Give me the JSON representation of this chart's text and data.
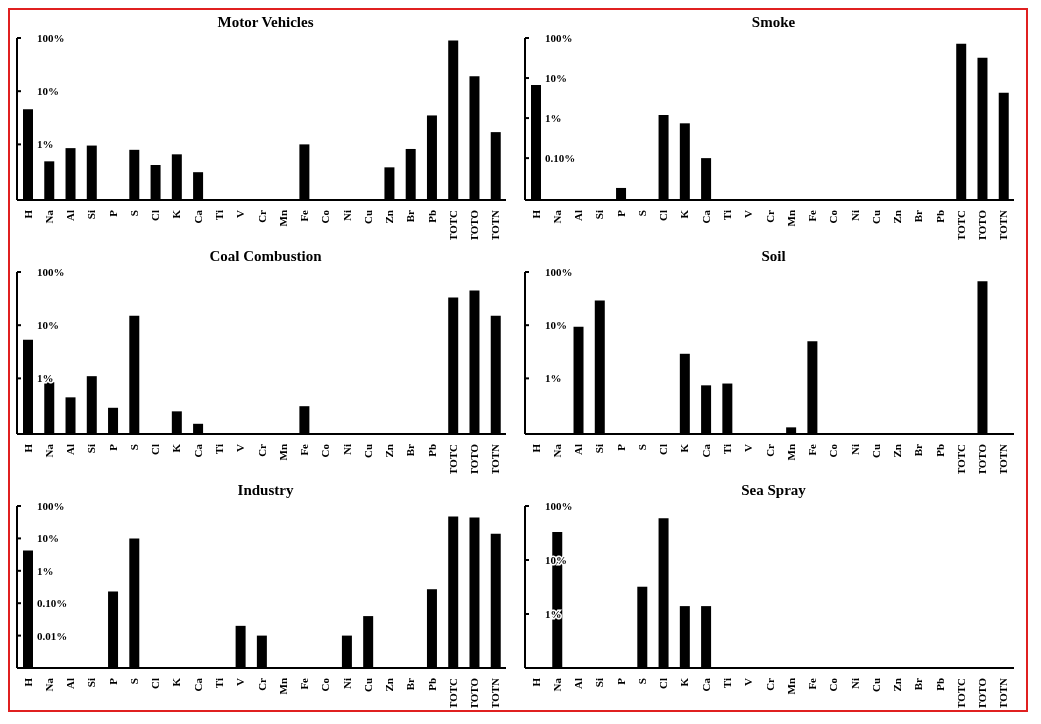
{
  "chart_data": [
    {
      "type": "bar",
      "title": "Motor Vehicles",
      "categories": [
        "H",
        "Na",
        "Al",
        "Si",
        "P",
        "S",
        "Cl",
        "K",
        "Ca",
        "Ti",
        "V",
        "Cr",
        "Mn",
        "Fe",
        "Co",
        "Ni",
        "Cu",
        "Zn",
        "Br",
        "Pb",
        "TOTC",
        "TOTO",
        "TOTN"
      ],
      "values": [
        4.6,
        0.48,
        0.85,
        0.95,
        null,
        0.79,
        0.41,
        0.65,
        0.3,
        null,
        null,
        null,
        null,
        1.0,
        null,
        null,
        null,
        0.37,
        0.82,
        3.5,
        90,
        19,
        1.7
      ],
      "color": "#000000",
      "log": true,
      "ylim": [
        0.09,
        100
      ],
      "yticks": [
        {
          "value": 1,
          "label": "1%"
        },
        {
          "value": 10,
          "label": "10%"
        },
        {
          "value": 100,
          "label": "100%"
        }
      ]
    },
    {
      "type": "bar",
      "title": "Smoke",
      "categories": [
        "H",
        "Na",
        "Al",
        "Si",
        "P",
        "S",
        "Cl",
        "K",
        "Ca",
        "Ti",
        "V",
        "Cr",
        "Mn",
        "Fe",
        "Co",
        "Ni",
        "Cu",
        "Zn",
        "Br",
        "Pb",
        "TOTC",
        "TOTO",
        "TOTN"
      ],
      "values": [
        6.7,
        null,
        null,
        null,
        0.018,
        null,
        1.2,
        0.74,
        0.1,
        null,
        null,
        null,
        null,
        null,
        null,
        null,
        null,
        null,
        null,
        null,
        72,
        32,
        4.3
      ],
      "color": "#000000",
      "log": true,
      "ylim": [
        0.009,
        100
      ],
      "yticks": [
        {
          "value": 0.1,
          "label": "0.10%"
        },
        {
          "value": 1,
          "label": "1%"
        },
        {
          "value": 10,
          "label": "10%"
        },
        {
          "value": 100,
          "label": "100%"
        }
      ]
    },
    {
      "type": "bar",
      "title": "Coal Combustion",
      "categories": [
        "H",
        "Na",
        "Al",
        "Si",
        "P",
        "S",
        "Cl",
        "K",
        "Ca",
        "Ti",
        "V",
        "Cr",
        "Mn",
        "Fe",
        "Co",
        "Ni",
        "Cu",
        "Zn",
        "Br",
        "Pb",
        "TOTC",
        "TOTO",
        "TOTN"
      ],
      "values": [
        5.3,
        0.85,
        0.44,
        1.1,
        0.28,
        15,
        null,
        0.24,
        0.14,
        null,
        null,
        null,
        null,
        0.3,
        null,
        null,
        null,
        null,
        null,
        null,
        33,
        45,
        15
      ],
      "color": "#000000",
      "log": true,
      "ylim": [
        0.09,
        100
      ],
      "yticks": [
        {
          "value": 1,
          "label": "1%"
        },
        {
          "value": 10,
          "label": "10%"
        },
        {
          "value": 100,
          "label": "100%"
        }
      ]
    },
    {
      "type": "bar",
      "title": "Soil",
      "categories": [
        "H",
        "Na",
        "Al",
        "Si",
        "P",
        "S",
        "Cl",
        "K",
        "Ca",
        "Ti",
        "V",
        "Cr",
        "Mn",
        "Fe",
        "Co",
        "Ni",
        "Cu",
        "Zn",
        "Br",
        "Pb",
        "TOTC",
        "TOTO",
        "TOTN"
      ],
      "values": [
        null,
        null,
        9.3,
        29,
        null,
        null,
        null,
        2.9,
        0.74,
        0.8,
        null,
        null,
        0.12,
        5,
        null,
        null,
        null,
        null,
        null,
        null,
        null,
        67,
        null
      ],
      "color": "#000000",
      "log": true,
      "ylim": [
        0.09,
        100
      ],
      "yticks": [
        {
          "value": 1,
          "label": "1%"
        },
        {
          "value": 10,
          "label": "10%"
        },
        {
          "value": 100,
          "label": "100%"
        }
      ]
    },
    {
      "type": "bar",
      "title": "Industry",
      "categories": [
        "H",
        "Na",
        "Al",
        "Si",
        "P",
        "S",
        "Cl",
        "K",
        "Ca",
        "Ti",
        "V",
        "Cr",
        "Mn",
        "Fe",
        "Co",
        "Ni",
        "Cu",
        "Zn",
        "Br",
        "Pb",
        "TOTC",
        "TOTO",
        "TOTN"
      ],
      "values": [
        4.2,
        null,
        null,
        null,
        0.23,
        10,
        null,
        null,
        null,
        null,
        0.02,
        0.01,
        null,
        null,
        null,
        0.01,
        0.04,
        null,
        null,
        0.27,
        47,
        44,
        14
      ],
      "color": "#000000",
      "log": true,
      "ylim": [
        0.001,
        100
      ],
      "yticks": [
        {
          "value": 0.01,
          "label": "0.01%"
        },
        {
          "value": 0.1,
          "label": "0.10%"
        },
        {
          "value": 1,
          "label": "1%"
        },
        {
          "value": 10,
          "label": "10%"
        },
        {
          "value": 100,
          "label": "100%"
        }
      ]
    },
    {
      "type": "bar",
      "title": "Sea Spray",
      "categories": [
        "H",
        "Na",
        "Al",
        "Si",
        "P",
        "S",
        "Cl",
        "K",
        "Ca",
        "Ti",
        "V",
        "Cr",
        "Mn",
        "Fe",
        "Co",
        "Ni",
        "Cu",
        "Zn",
        "Br",
        "Pb",
        "TOTC",
        "TOTO",
        "TOTN"
      ],
      "values": [
        null,
        33,
        null,
        null,
        null,
        3.2,
        59,
        1.4,
        1.4,
        null,
        null,
        null,
        null,
        null,
        null,
        null,
        null,
        null,
        null,
        null,
        null,
        null,
        null
      ],
      "color": "#000000",
      "log": true,
      "ylim": [
        0.1,
        100
      ],
      "yticks": [
        {
          "value": 1,
          "label": "1%"
        },
        {
          "value": 10,
          "label": "10%"
        },
        {
          "value": 100,
          "label": "100%"
        }
      ]
    }
  ]
}
